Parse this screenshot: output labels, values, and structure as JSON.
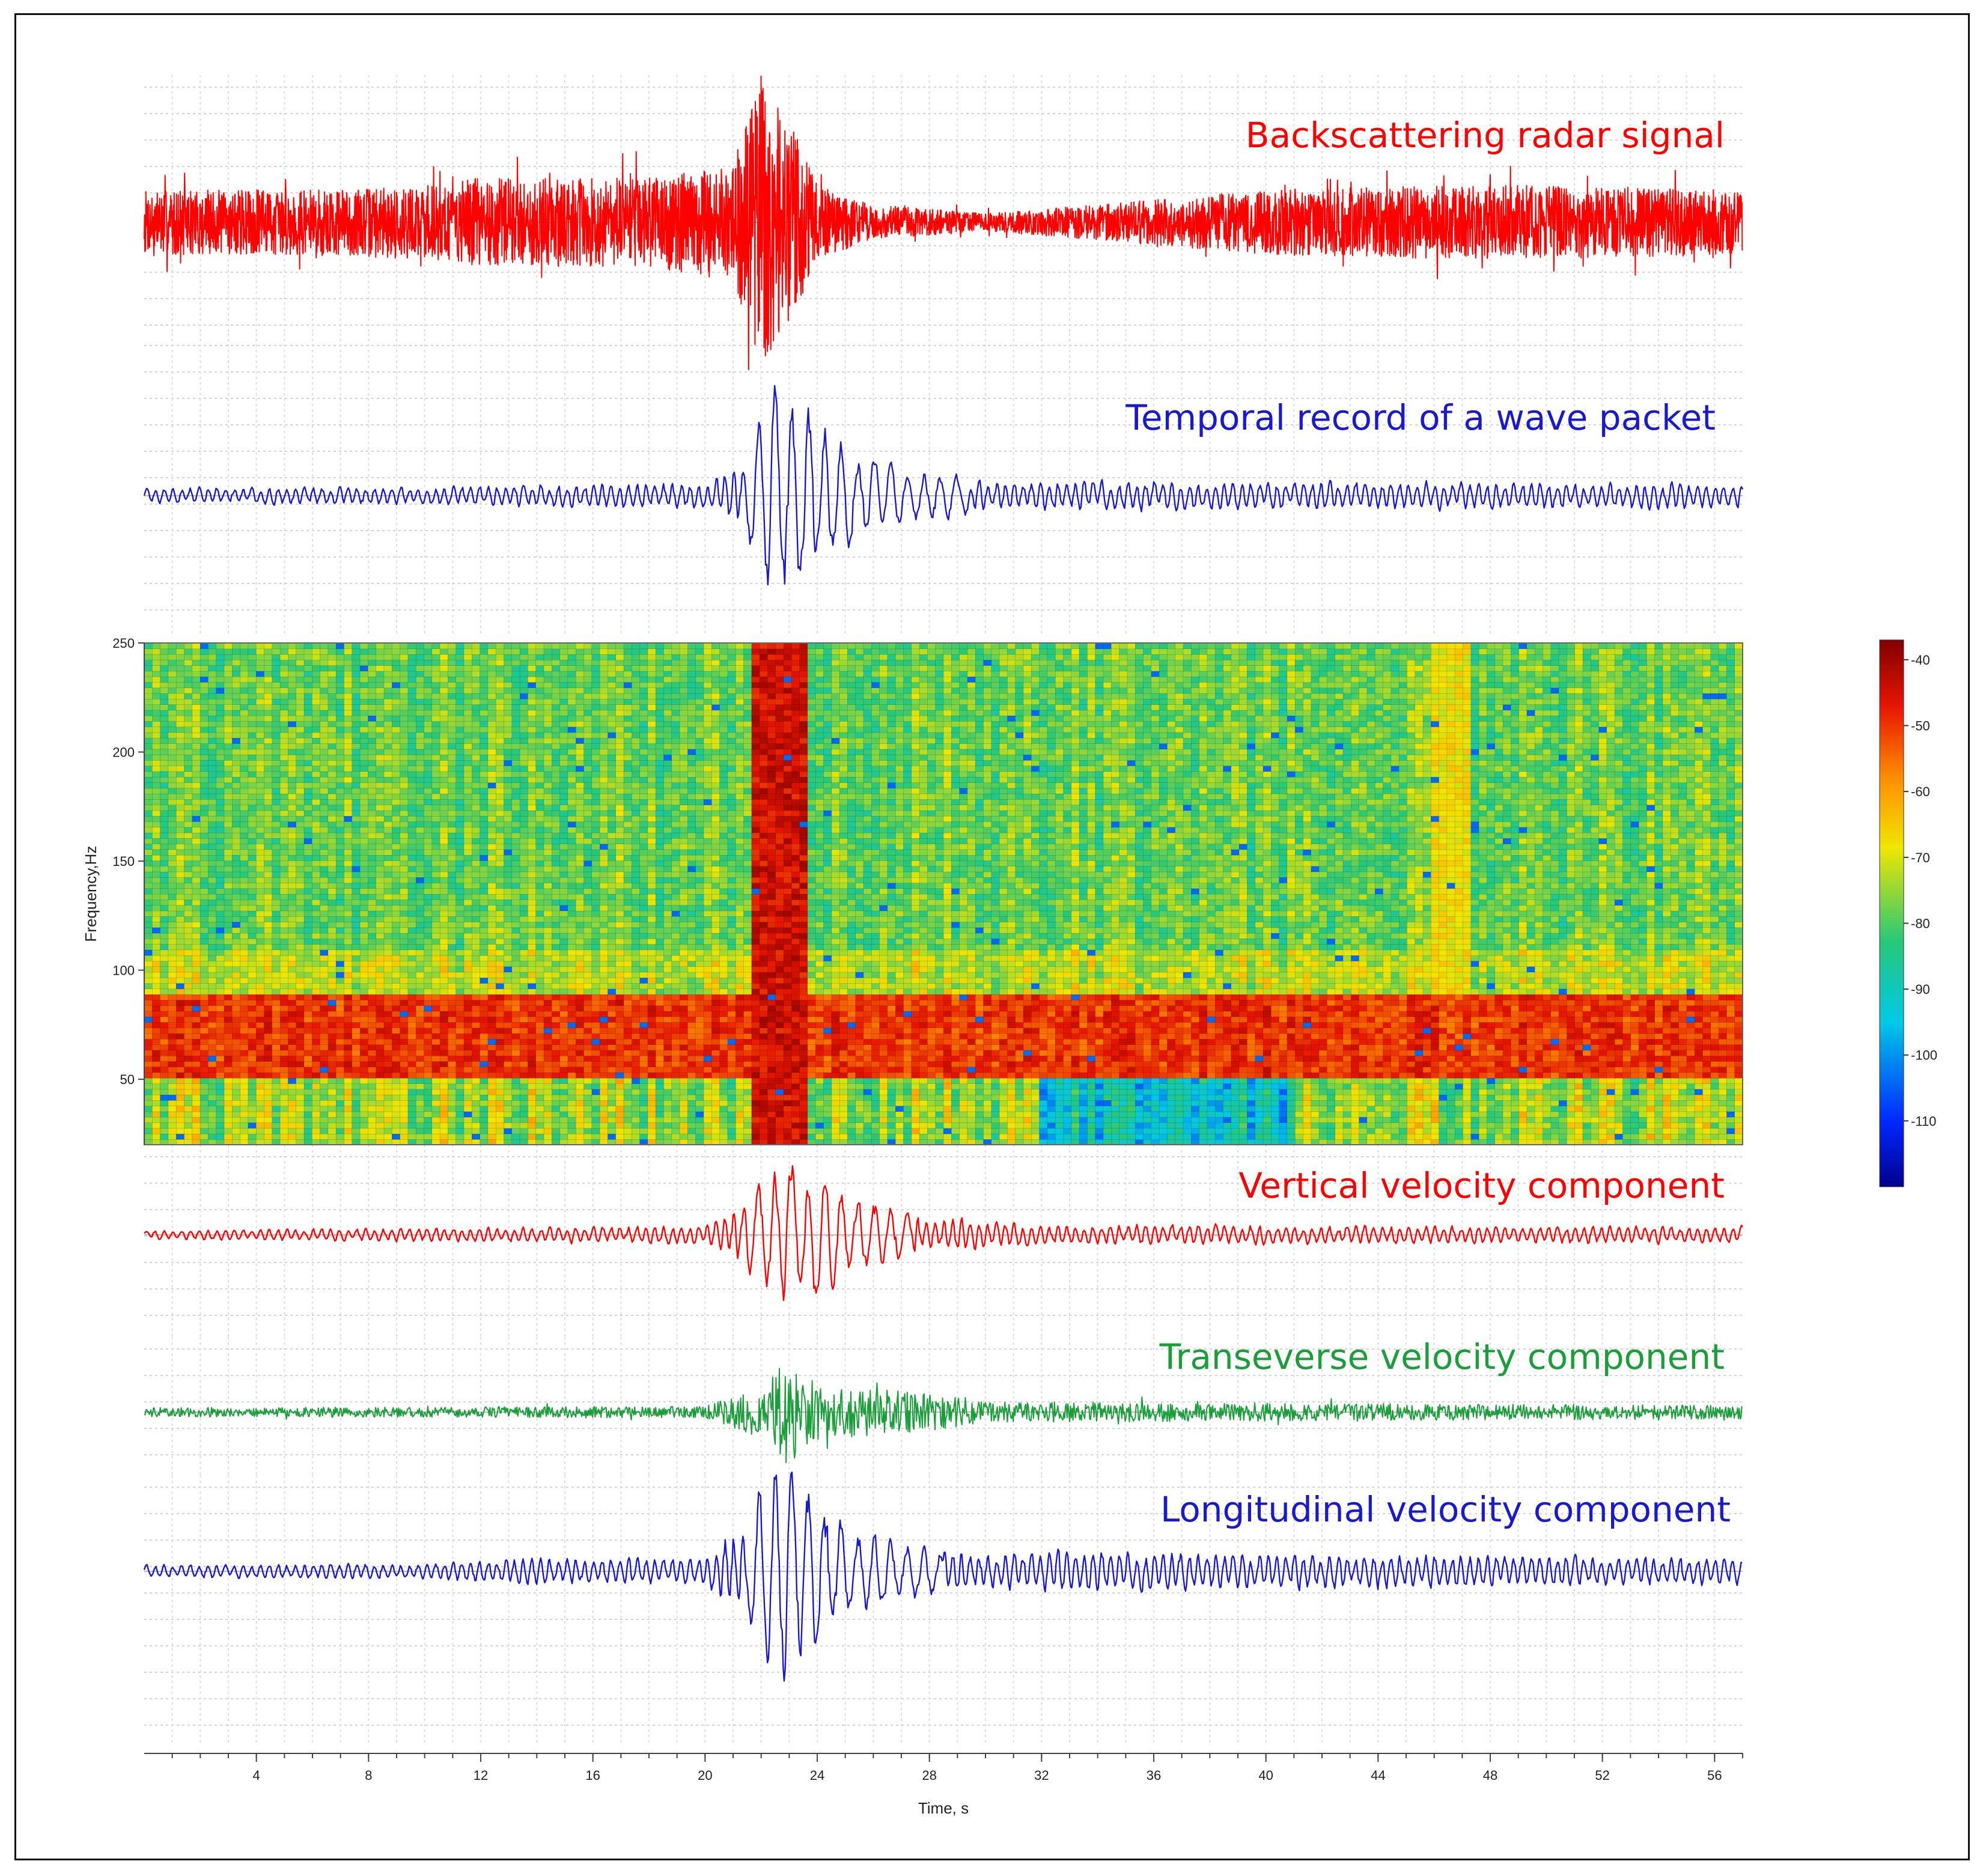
{
  "chart_data": {
    "type": "multi-panel",
    "x_axis": {
      "label": "Time, s",
      "range": [
        0,
        57
      ],
      "ticks": [
        4,
        8,
        12,
        16,
        20,
        24,
        28,
        32,
        36,
        40,
        44,
        48,
        52,
        56
      ],
      "tick_labels": [
        "4",
        "8",
        "12",
        "16",
        "20",
        "24",
        "28",
        "32",
        "36",
        "40",
        "44",
        "48",
        "52",
        "56"
      ]
    },
    "panels": [
      {
        "id": "backscatter",
        "type": "line",
        "label": "Backscattering radar signal",
        "color": "#ff0000",
        "event": {
          "time_range_s": [
            21.3,
            24.0
          ],
          "peak_time_s": 22.0
        },
        "envelope": {
          "t": [
            0,
            6,
            10,
            12,
            18,
            21,
            22,
            23,
            24,
            26,
            30,
            34,
            40,
            46,
            50,
            57
          ],
          "a": [
            0.22,
            0.22,
            0.25,
            0.3,
            0.3,
            0.4,
            1.0,
            0.7,
            0.25,
            0.12,
            0.06,
            0.12,
            0.22,
            0.25,
            0.25,
            0.22
          ]
        }
      },
      {
        "id": "wave-packet",
        "type": "line",
        "label": "Temporal record of a wave packet",
        "color": "#1a1acc",
        "event": {
          "time_range_s": [
            21.3,
            26.5
          ],
          "peak_time_s": 22.8
        },
        "envelope": {
          "t": [
            0,
            10,
            20,
            21.3,
            22.5,
            23.5,
            25,
            27,
            30,
            57
          ],
          "a": [
            0.08,
            0.1,
            0.14,
            0.3,
            1.0,
            0.85,
            0.45,
            0.25,
            0.15,
            0.14
          ]
        }
      },
      {
        "id": "spectrogram",
        "type": "heatmap",
        "y_axis": {
          "label": "Frequency,Hz",
          "range": [
            20,
            250
          ],
          "ticks": [
            50,
            100,
            150,
            200,
            250
          ],
          "tick_labels": [
            "50",
            "100",
            "150",
            "200",
            "250"
          ]
        },
        "colorbar": {
          "range": [
            -120,
            -37
          ],
          "ticks": [
            -40,
            -50,
            -60,
            -70,
            -80,
            -90,
            -100,
            -110
          ],
          "tick_labels": [
            "-40",
            "-50",
            "-60",
            "-70",
            "-80",
            "-90",
            "-100",
            "-110"
          ]
        },
        "features": {
          "band_frequency_hz": [
            50,
            90
          ],
          "band_level_db": -50,
          "background_level_db": -78,
          "broadband_event_time_s": [
            21.8,
            23.6
          ],
          "broadband_event_level_db": -45,
          "secondary_vertical_streak_time_s": [
            46,
            47.2
          ]
        }
      },
      {
        "id": "vertical",
        "type": "line",
        "label": "Vertical velocity component",
        "color": "#ff0000",
        "event": {
          "time_range_s": [
            21.3,
            24.5
          ],
          "peak_time_s": 23.5
        },
        "envelope": {
          "t": [
            0,
            10,
            20,
            21.3,
            22.5,
            23.5,
            25,
            28,
            32,
            57
          ],
          "a": [
            0.07,
            0.1,
            0.14,
            0.4,
            0.9,
            1.0,
            0.5,
            0.25,
            0.15,
            0.12
          ]
        }
      },
      {
        "id": "transverse",
        "type": "line",
        "label": "Transeverse velocity component",
        "color": "#1a9e3a",
        "event": {
          "time_range_s": [
            22.0,
            29.5
          ],
          "peak_time_s": 22.8
        },
        "envelope": {
          "t": [
            0,
            20,
            22,
            23,
            24,
            26,
            28,
            30,
            57
          ],
          "a": [
            0.08,
            0.1,
            0.45,
            1.0,
            0.5,
            0.4,
            0.35,
            0.18,
            0.12
          ]
        }
      },
      {
        "id": "longitudinal",
        "type": "line",
        "label": "Longitudinal velocity component",
        "color": "#1a1acc",
        "event": {
          "time_range_s": [
            21.3,
            25.5
          ],
          "peak_time_s": 22.9
        },
        "envelope": {
          "t": [
            0,
            10,
            13,
            20,
            21.3,
            22.5,
            23.5,
            25,
            28,
            57
          ],
          "a": [
            0.07,
            0.08,
            0.14,
            0.14,
            0.5,
            1.0,
            0.8,
            0.4,
            0.22,
            0.14
          ]
        }
      }
    ]
  }
}
